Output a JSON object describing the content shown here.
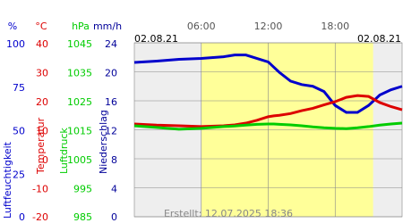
{
  "chart_data": {
    "type": "line",
    "date_left": "02.08.21",
    "date_right": "02.08.21",
    "footer": "Erstellt: 12.07.2025 18:36",
    "xlim": [
      0,
      24
    ],
    "xticks": [
      {
        "value": 6,
        "label": "06:00"
      },
      {
        "value": 12,
        "label": "12:00"
      },
      {
        "value": 18,
        "label": "18:00"
      }
    ],
    "daylight": [
      6,
      21.4
    ],
    "grid": true,
    "axes": [
      {
        "unit": "%",
        "title": "Luftfeuchtigkeit",
        "color": "#0000cc",
        "ylim": [
          0,
          100
        ],
        "yticks": [
          100,
          75,
          50,
          25,
          0
        ]
      },
      {
        "unit": "°C",
        "title": "Temperatur",
        "color": "#dd0000",
        "ylim": [
          -20,
          40
        ],
        "yticks": [
          40,
          30,
          20,
          10,
          0,
          -10,
          -20
        ]
      },
      {
        "unit": "hPa",
        "title": "Luftdruck",
        "color": "#00cc00",
        "ylim": [
          985,
          1045
        ],
        "yticks": [
          1045,
          1035,
          1025,
          1015,
          1005,
          995,
          985
        ]
      },
      {
        "unit": "mm/h",
        "title": "Niederschlag",
        "color": "#000099",
        "ylim": [
          0,
          24
        ],
        "yticks": [
          24,
          20,
          16,
          12,
          8,
          4,
          0
        ]
      }
    ],
    "x": [
      0,
      2,
      4,
      6,
      8,
      9,
      10,
      11,
      12,
      12.5,
      13,
      14,
      15,
      16,
      17,
      18,
      19,
      20,
      21,
      22,
      23,
      24
    ],
    "series": [
      {
        "axis": 0,
        "color": "#0000cc",
        "values": [
          88.7,
          89.5,
          90.5,
          91,
          92,
          93,
          93,
          91,
          89,
          86,
          83,
          78,
          76,
          75,
          72,
          64,
          60,
          60,
          64,
          70,
          73,
          75
        ]
      },
      {
        "axis": 1,
        "color": "#dd0000",
        "values": [
          12,
          11.6,
          11.4,
          11.1,
          11.4,
          11.7,
          12.3,
          13.3,
          14.5,
          14.8,
          15,
          15.6,
          16.6,
          17.4,
          18.6,
          19.7,
          21.2,
          21.8,
          21.5,
          19.4,
          18,
          16.9
        ]
      },
      {
        "axis": 2,
        "color": "#00cc00",
        "values": [
          1016.4,
          1015.8,
          1015.2,
          1015.5,
          1016.1,
          1016.3,
          1016.6,
          1016.9,
          1017,
          1017,
          1016.9,
          1016.7,
          1016.4,
          1016,
          1015.7,
          1015.5,
          1015.4,
          1015.7,
          1016.1,
          1016.6,
          1017,
          1017.3
        ]
      }
    ]
  }
}
